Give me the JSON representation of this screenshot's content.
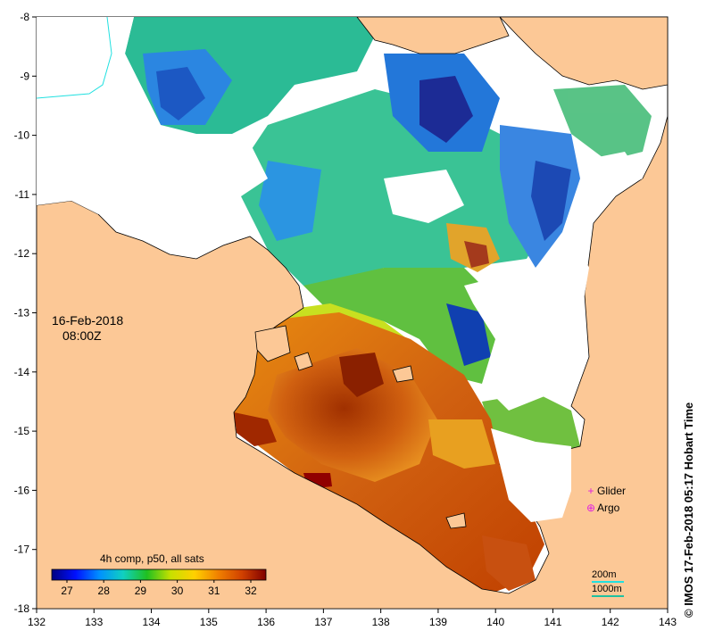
{
  "map": {
    "date": "16-Feb-2018",
    "time": "08:00Z",
    "colorbar_title": "4h comp, p50, all sats",
    "colorbar_ticks": [
      "27",
      "28",
      "29",
      "30",
      "31",
      "32"
    ],
    "colorbar_colors": [
      "#00007f",
      "#0010ff",
      "#0090ff",
      "#10d0c0",
      "#20c020",
      "#c8e000",
      "#ffd000",
      "#f08000",
      "#d04000",
      "#800000"
    ],
    "x_ticks": [
      "132",
      "133",
      "134",
      "135",
      "136",
      "137",
      "138",
      "139",
      "140",
      "141",
      "142",
      "143"
    ],
    "y_ticks": [
      "-8",
      "-9",
      "-10",
      "-11",
      "-12",
      "-13",
      "-14",
      "-15",
      "-16",
      "-17",
      "-18"
    ],
    "legend": [
      {
        "label": "Glider",
        "marker": "+",
        "color": "#e020e0"
      },
      {
        "label": "Argo",
        "marker": "⊕",
        "color": "#e020e0"
      }
    ],
    "depth_contours": [
      {
        "label": "200m",
        "color": "#20e0e0"
      },
      {
        "label": "1000m",
        "color": "#20c0a0"
      }
    ],
    "credit": "© IMOS 17-Feb-2018 05:17 Hobart Time",
    "colors": {
      "land": "#fcc896",
      "ocean_nodata": "#ffffff"
    }
  }
}
